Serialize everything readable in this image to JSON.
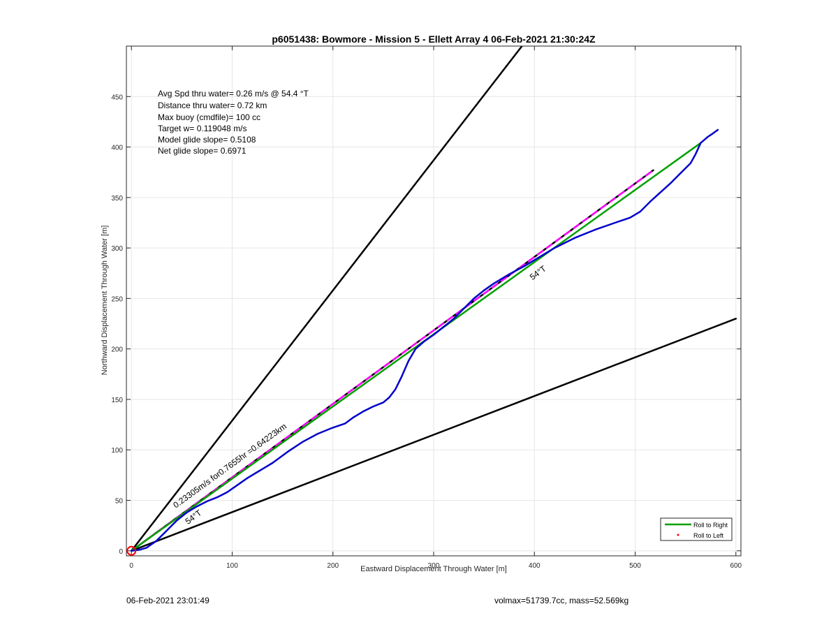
{
  "footer": {
    "timestamp": "06-Feb-2021 23:01:49",
    "info": "volmax=51739.7cc, mass=52.569kg"
  },
  "chart_data": {
    "type": "line",
    "title": "p6051438: Bowmore - Mission 5 - Ellett Array 4 06-Feb-2021 21:30:24Z",
    "xlabel": "Eastward Displacement Through Water [m]",
    "ylabel": "Northward Displacement Through Water [m]",
    "xlim": [
      -5,
      605
    ],
    "ylim": [
      -5,
      500
    ],
    "xticks": [
      0,
      100,
      200,
      300,
      400,
      500,
      600
    ],
    "yticks": [
      0,
      50,
      100,
      150,
      200,
      250,
      300,
      350,
      400,
      450
    ],
    "grid": true,
    "legend_position": "bottom-right",
    "legend": [
      {
        "label": "Roll to Right",
        "color": "#00a000",
        "style": "line"
      },
      {
        "label": "Roll to Left",
        "color": "#ff0000",
        "style": "dot"
      }
    ],
    "info_lines": [
      "Avg Spd thru water=  0.26 m/s @  54.4 °T",
      "Distance thru water=  0.72 km",
      "Max buoy (cmdfile)= 100 cc",
      "Target w= 0.119048 m/s",
      "Model glide slope= 0.5108",
      "Net glide slope= 0.6971"
    ],
    "annotations": [
      {
        "text": "0.23305m/s for0.7655hr =0.64223km",
        "x": 44,
        "y": 42,
        "angle": 36
      },
      {
        "text": "54°T",
        "x": 56,
        "y": 26,
        "angle": 36
      },
      {
        "text": "54°T",
        "x": 398,
        "y": 268,
        "angle": 36
      }
    ],
    "series": [
      {
        "color": "#000000",
        "style": "solid",
        "x": [
          0,
          400
        ],
        "y": [
          0,
          516
        ]
      },
      {
        "color": "#000000",
        "style": "solid",
        "x": [
          0,
          600
        ],
        "y": [
          0,
          230
        ]
      },
      {
        "color": "#000000",
        "style": "solid",
        "x": [
          0,
          518
        ],
        "y": [
          0,
          377
        ]
      },
      {
        "color": "#ff00ff",
        "style": "dashed",
        "x": [
          0,
          518
        ],
        "y": [
          0,
          377
        ]
      },
      {
        "name": "Roll to Right",
        "color": "#00a000",
        "style": "solid",
        "x": [
          0,
          565
        ],
        "y": [
          0,
          404
        ]
      },
      {
        "color": "#0000cc",
        "style": "solid",
        "x": [
          0,
          8,
          15,
          25,
          35,
          45,
          55,
          65,
          75,
          85,
          95,
          105,
          115,
          125,
          140,
          155,
          170,
          185,
          200,
          212,
          220,
          230,
          240,
          250,
          256,
          262,
          268,
          275,
          282,
          290,
          300,
          310,
          320,
          330,
          340,
          350,
          360,
          375,
          390,
          405,
          420,
          440,
          460,
          480,
          495,
          505,
          515,
          525,
          535,
          545,
          555,
          560,
          565,
          572,
          578,
          582
        ],
        "y": [
          0,
          1,
          3,
          10,
          20,
          30,
          38,
          44,
          49,
          53,
          58,
          65,
          72,
          78,
          87,
          98,
          108,
          116,
          122,
          126,
          132,
          138,
          143,
          147,
          152,
          160,
          172,
          188,
          200,
          207,
          214,
          222,
          230,
          240,
          250,
          258,
          265,
          274,
          282,
          291,
          300,
          310,
          318,
          325,
          330,
          336,
          346,
          355,
          364,
          374,
          384,
          393,
          404,
          410,
          414,
          417
        ]
      }
    ],
    "start_marker": {
      "x": 0,
      "y": 0,
      "color": "#ff0000",
      "shape": "circle"
    }
  }
}
